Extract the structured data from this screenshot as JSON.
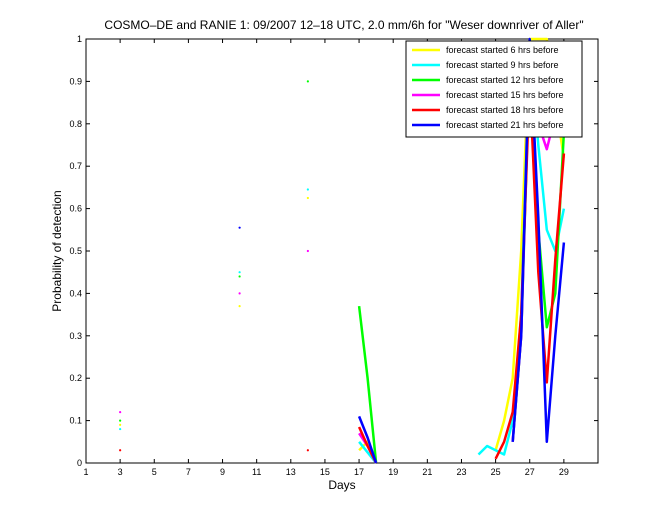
{
  "chart_data": {
    "type": "line",
    "title": "COSMO–DE and RANIE 1: 09/2007 12–18 UTC, 2.0 mm/6h for \"Weser downriver of Aller\"",
    "xlabel": "Days",
    "ylabel": "Probability of detection",
    "xlim": [
      1,
      31
    ],
    "ylim": [
      0,
      1
    ],
    "xticks": [
      1,
      3,
      5,
      7,
      9,
      11,
      13,
      15,
      17,
      19,
      21,
      23,
      25,
      27,
      29
    ],
    "yticks": [
      0,
      0.1,
      0.2,
      0.3,
      0.4,
      0.5,
      0.6,
      0.7,
      0.8,
      0.9,
      1
    ],
    "grid": false,
    "legend_position": "top-right",
    "series": [
      {
        "name": "forecast started 6 hrs before",
        "color": "#ffff00",
        "segments": [
          [
            [
              3,
              0.09
            ]
          ],
          [
            [
              10,
              0.37
            ]
          ],
          [
            [
              14,
              0.625
            ]
          ],
          [
            [
              17,
              0.03
            ],
            [
              17.5,
              0.05
            ],
            [
              18,
              0
            ]
          ],
          [
            [
              25,
              0.03
            ],
            [
              25.5,
              0.1
            ],
            [
              26,
              0.2
            ],
            [
              26.5,
              0.5
            ],
            [
              27,
              1
            ],
            [
              27.5,
              1
            ],
            [
              28,
              1
            ],
            [
              28.5,
              0.85
            ],
            [
              29,
              0.72
            ]
          ]
        ]
      },
      {
        "name": "forecast started 9 hrs before",
        "color": "#00ffff",
        "segments": [
          [
            [
              3,
              0.08
            ]
          ],
          [
            [
              10,
              0.45
            ]
          ],
          [
            [
              14,
              0.645
            ]
          ],
          [
            [
              17,
              0.05
            ],
            [
              18,
              0
            ]
          ],
          [
            [
              24,
              0.02
            ],
            [
              24.5,
              0.04
            ],
            [
              25,
              0.03
            ],
            [
              25.5,
              0.02
            ],
            [
              26,
              0.1
            ],
            [
              26.5,
              0.35
            ],
            [
              27,
              0.98
            ],
            [
              27.5,
              0.75
            ],
            [
              28,
              0.55
            ],
            [
              28.5,
              0.5
            ],
            [
              29,
              0.6
            ]
          ]
        ]
      },
      {
        "name": "forecast started 12 hrs before",
        "color": "#00ff00",
        "segments": [
          [
            [
              3,
              0.1
            ]
          ],
          [
            [
              10,
              0.44
            ]
          ],
          [
            [
              14,
              0.9
            ]
          ],
          [
            [
              17,
              0.37
            ],
            [
              17.5,
              0.2
            ],
            [
              18,
              0
            ]
          ],
          [
            [
              26,
              0.05
            ],
            [
              26.5,
              0.3
            ],
            [
              27,
              0.95
            ],
            [
              27.5,
              0.55
            ],
            [
              28,
              0.32
            ],
            [
              28.5,
              0.4
            ],
            [
              29,
              0.78
            ]
          ]
        ]
      },
      {
        "name": "forecast started 15 hrs before",
        "color": "#ff00ff",
        "segments": [
          [
            [
              3,
              0.12
            ]
          ],
          [
            [
              10,
              0.4
            ]
          ],
          [
            [
              14,
              0.5
            ]
          ],
          [
            [
              17,
              0.07
            ],
            [
              17.5,
              0.04
            ],
            [
              18,
              0
            ]
          ],
          [
            [
              26,
              0.05
            ],
            [
              26.5,
              0.3
            ],
            [
              27,
              0.97
            ],
            [
              27.5,
              0.8
            ],
            [
              28,
              0.74
            ],
            [
              28.5,
              0.82
            ],
            [
              29,
              0.88
            ]
          ]
        ]
      },
      {
        "name": "forecast started 18 hrs before",
        "color": "#ff0000",
        "segments": [
          [
            [
              3,
              0.03
            ]
          ],
          [
            [
              14,
              0.03
            ]
          ],
          [
            [
              17,
              0.085
            ],
            [
              17.5,
              0.04
            ],
            [
              18,
              0
            ]
          ],
          [
            [
              25,
              0.01
            ],
            [
              25.5,
              0.05
            ],
            [
              26,
              0.12
            ],
            [
              26.5,
              0.35
            ],
            [
              27,
              0.9
            ],
            [
              27.5,
              0.45
            ],
            [
              28,
              0.19
            ],
            [
              28.5,
              0.48
            ],
            [
              29,
              0.73
            ]
          ]
        ]
      },
      {
        "name": "forecast started 21 hrs before",
        "color": "#0000ff",
        "segments": [
          [
            [
              10,
              0.555
            ]
          ],
          [
            [
              17,
              0.11
            ],
            [
              17.5,
              0.06
            ],
            [
              18,
              0
            ]
          ],
          [
            [
              26,
              0.05
            ],
            [
              26.5,
              0.3
            ],
            [
              27,
              1
            ],
            [
              27.5,
              0.58
            ],
            [
              28,
              0.05
            ],
            [
              28.5,
              0.3
            ],
            [
              29,
              0.52
            ]
          ]
        ]
      }
    ]
  }
}
